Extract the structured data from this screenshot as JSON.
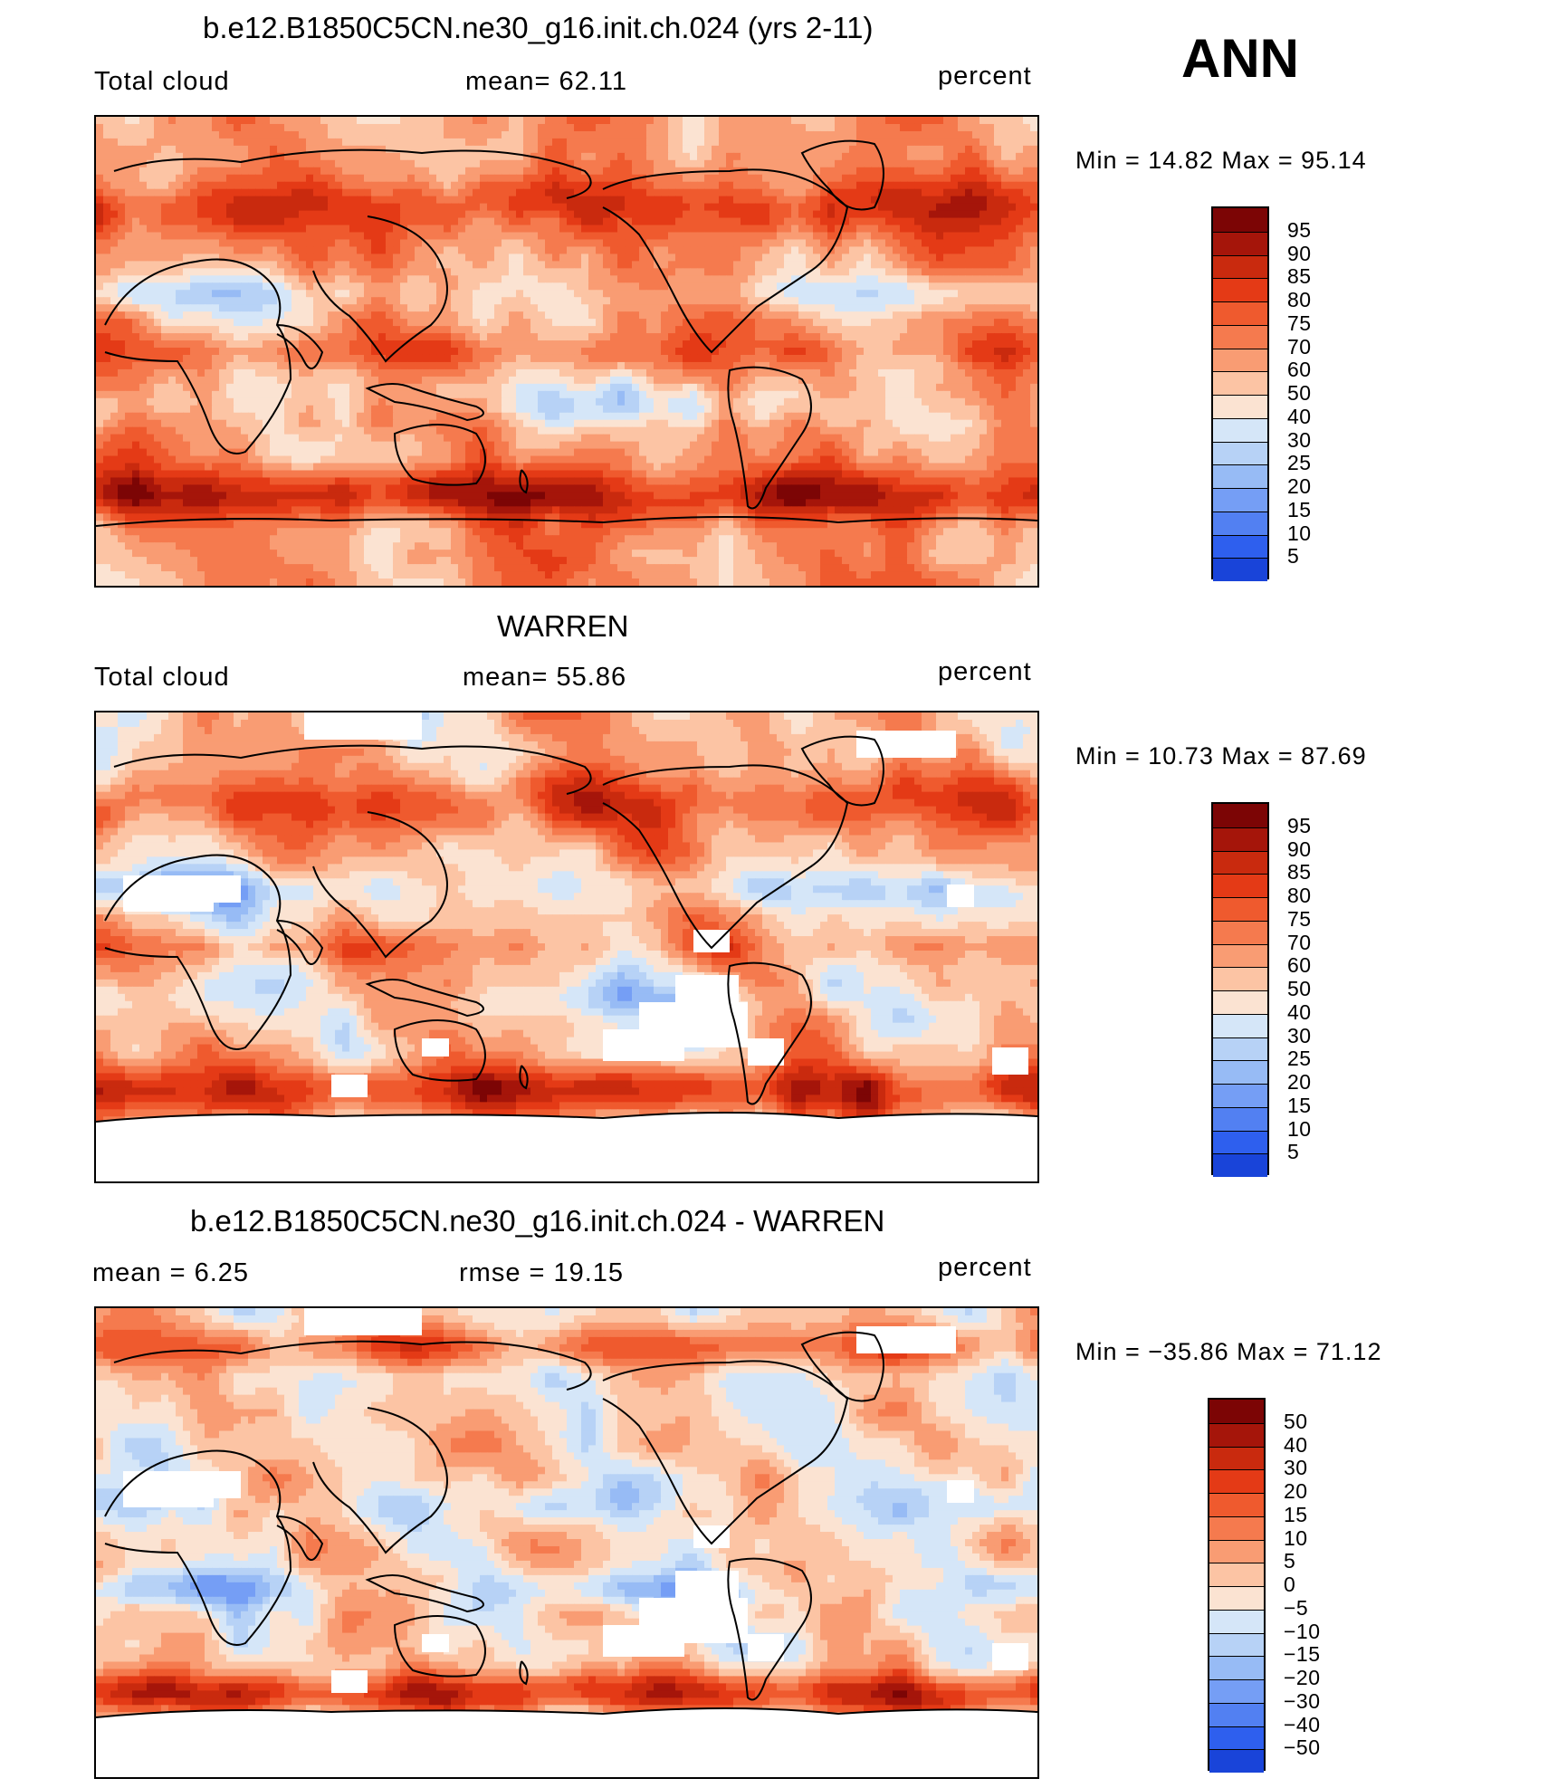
{
  "season": "ANN",
  "colors": {
    "warm": [
      "#fbe3d2",
      "#fcc4a4",
      "#f99c73",
      "#f57a4e",
      "#ef5a2e",
      "#e43a16",
      "#c92a0e",
      "#a5150a",
      "#7c0505"
    ],
    "cool": [
      "#d5e6f8",
      "#b7d2f6",
      "#97bbf5",
      "#759ef5",
      "#5280f2",
      "#2e5fee",
      "#1944d9",
      "#0d2cb3",
      "#071a80"
    ]
  },
  "panels": [
    {
      "title": "b.e12.B1850C5CN.ne30_g16.init.ch.024 (yrs 2-11)",
      "left_label": "Total cloud",
      "mid_label": "mean=   62.11",
      "right_label": "percent",
      "minmax": "Min =    14.82  Max =    95.14",
      "colorbar_labels": [
        "95",
        "90",
        "85",
        "80",
        "75",
        "70",
        "60",
        "50",
        "40",
        "30",
        "25",
        "20",
        "15",
        "10",
        "5"
      ],
      "field": "model"
    },
    {
      "title": "WARREN",
      "left_label": "Total cloud",
      "mid_label": "mean=   55.86",
      "right_label": "percent",
      "minmax": "Min =    10.73  Max =    87.69",
      "colorbar_labels": [
        "95",
        "90",
        "85",
        "80",
        "75",
        "70",
        "60",
        "50",
        "40",
        "30",
        "25",
        "20",
        "15",
        "10",
        "5"
      ],
      "field": "obs"
    },
    {
      "title": "b.e12.B1850C5CN.ne30_g16.init.ch.024 - WARREN",
      "left_label": "mean =      6.25",
      "mid_label": "rmse  =    19.15",
      "right_label": "percent",
      "minmax": "Min = −35.86  Max =    71.12",
      "colorbar_labels": [
        "50",
        "40",
        "30",
        "20",
        "15",
        "10",
        "5",
        "0",
        "−5",
        "−10",
        "−15",
        "−20",
        "−30",
        "−40",
        "−50"
      ],
      "field": "diff"
    }
  ]
}
